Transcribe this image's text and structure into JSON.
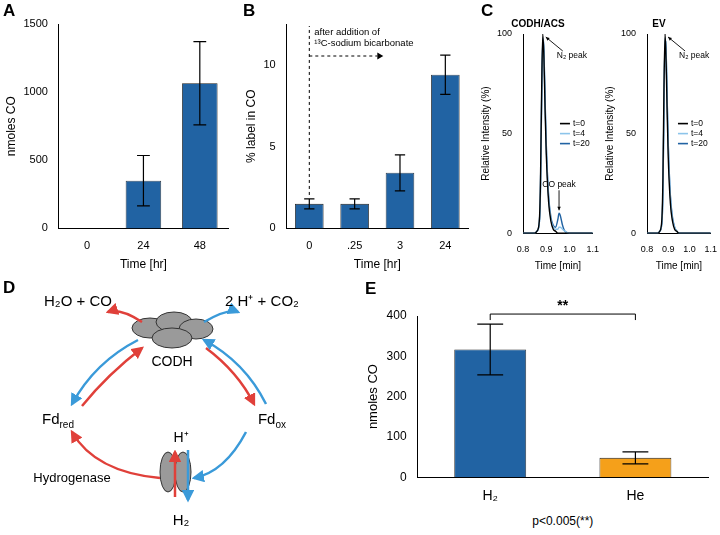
{
  "chart_data": [
    {
      "panel_label": "A",
      "type": "bar",
      "categories": [
        "0",
        "24",
        "48"
      ],
      "values": [
        0,
        350,
        1065
      ],
      "errors": [
        null,
        185,
        305
      ],
      "color": "#2163a3",
      "x_label": "Time [hr]",
      "y_label": "nmoles CO",
      "ylim": [
        0,
        1500
      ],
      "yticks": [
        0,
        500,
        1000,
        1500
      ],
      "grid": false
    },
    {
      "panel_label": "B",
      "type": "bar",
      "categories": [
        "0",
        ".25",
        "3",
        "24"
      ],
      "values": [
        1.5,
        1.5,
        3.4,
        9.4
      ],
      "errors": [
        0.3,
        0.3,
        1.1,
        1.2
      ],
      "color": "#2163a3",
      "x_label": "Time [hr]",
      "y_label": "% label in CO",
      "ylim": [
        0,
        12.5
      ],
      "yticks": [
        0,
        5,
        10
      ],
      "grid": false,
      "annotation": [
        "after addition of",
        "¹³C-sodium bicarbonate"
      ]
    },
    {
      "panel_label": "C",
      "type": "line",
      "title": "CODH/ACS",
      "x_label": "Time [min]",
      "y_label": "Relative Intensity (%)",
      "x": [
        0.8,
        0.85,
        0.86,
        0.87,
        0.875,
        0.88,
        0.885,
        0.89,
        0.895,
        0.9,
        0.91,
        0.92,
        0.93,
        0.94,
        0.95,
        0.955,
        0.96,
        0.97,
        0.98,
        1.0,
        1.1
      ],
      "series": [
        {
          "name": "t=0",
          "color": "#000000",
          "values": [
            0,
            0,
            1,
            6,
            25,
            70,
            100,
            88,
            62,
            40,
            16,
            6,
            2,
            1,
            0,
            0,
            0,
            0,
            0,
            0,
            0
          ]
        },
        {
          "name": "t=4",
          "color": "#8cc4ea",
          "values": [
            0,
            0,
            1,
            5,
            22,
            66,
            98,
            90,
            65,
            43,
            18,
            7,
            3,
            2,
            2,
            3,
            3,
            2,
            1,
            0,
            0
          ]
        },
        {
          "name": "t=20",
          "color": "#2163a3",
          "values": [
            0,
            0,
            1,
            5,
            21,
            65,
            97,
            92,
            67,
            45,
            19,
            8,
            4,
            3,
            7,
            10,
            9,
            4,
            1,
            0,
            0
          ]
        }
      ],
      "xlim": [
        0.8,
        1.1
      ],
      "xticks": [
        0.8,
        0.9,
        {
          "value": 1,
          "label": "1.0"
        },
        1.1
      ],
      "ylim": [
        0,
        100
      ],
      "yticks": [
        0,
        50,
        100
      ],
      "grid": false,
      "legend": "right",
      "annotations": [
        {
          "text": "N₂ peak",
          "x": 0.885,
          "y": 100
        },
        {
          "text": "CO peak",
          "x": 0.955,
          "y": 10
        }
      ]
    },
    {
      "type": "line",
      "title": "EV",
      "x_label": "Time [min]",
      "y_label": "Relative Intensity (%)",
      "x": [
        0.8,
        0.85,
        0.86,
        0.87,
        0.875,
        0.88,
        0.885,
        0.89,
        0.895,
        0.9,
        0.91,
        0.92,
        0.93,
        0.94,
        0.95,
        0.955,
        0.96,
        0.97,
        0.98,
        1.0,
        1.1
      ],
      "series": [
        {
          "name": "t=0",
          "color": "#000000",
          "values": [
            0,
            0,
            1,
            7,
            28,
            74,
            100,
            86,
            60,
            38,
            15,
            6,
            2,
            1,
            0,
            0,
            0,
            0,
            0,
            0,
            0
          ]
        },
        {
          "name": "t=4",
          "color": "#8cc4ea",
          "values": [
            0,
            0,
            1,
            5,
            22,
            66,
            98,
            91,
            66,
            44,
            18,
            7,
            3,
            1,
            0,
            0,
            0,
            0,
            0,
            0,
            0
          ]
        },
        {
          "name": "t=20",
          "color": "#2163a3",
          "values": [
            0,
            0,
            1,
            5,
            21,
            64,
            97,
            92,
            67,
            45,
            19,
            8,
            3,
            1,
            0,
            0,
            0,
            0,
            0,
            0,
            0
          ]
        }
      ],
      "xlim": [
        0.8,
        1.1
      ],
      "xticks": [
        0.8,
        0.9,
        {
          "value": 1,
          "label": "1.0"
        },
        1.1
      ],
      "ylim": [
        0,
        100
      ],
      "yticks": [
        0,
        50,
        100
      ],
      "grid": false,
      "legend": "right",
      "annotations": [
        {
          "text": "N₂ peak",
          "x": 0.885,
          "y": 100
        }
      ]
    },
    {
      "panel_label": "E",
      "type": "bar",
      "categories": [
        "H₂",
        "He"
      ],
      "values": [
        317,
        48
      ],
      "errors": [
        63,
        15
      ],
      "colors": [
        "#2163a3",
        "#f5a01a"
      ],
      "y_label": "nmoles CO",
      "ylim": [
        0,
        400
      ],
      "yticks": [
        0,
        100,
        200,
        300,
        400
      ],
      "grid": false,
      "annotations": [
        {
          "text": "**",
          "between": [
            "H₂",
            "He"
          ]
        }
      ],
      "note": "p<0.005(**)"
    }
  ],
  "diagram": {
    "panel_label": "D",
    "texts": [
      {
        "text": "H₂O + CO"
      },
      {
        "text": "2 H⁺ + CO₂"
      },
      {
        "text": "CODH"
      },
      {
        "text": "Fd",
        "sub": "red"
      },
      {
        "text": "Fd",
        "sub": "ox"
      },
      {
        "text": "H⁺"
      },
      {
        "text": "Hydrogenase"
      },
      {
        "text": "H₂"
      }
    ]
  }
}
